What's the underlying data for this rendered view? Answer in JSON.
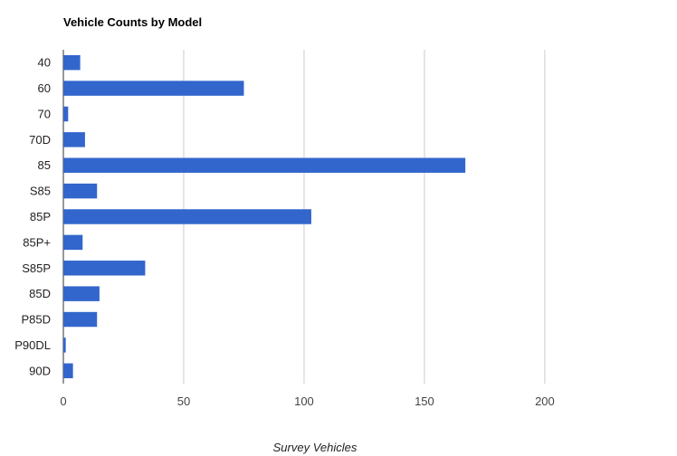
{
  "chart_data": {
    "type": "bar",
    "orientation": "horizontal",
    "title": "Vehicle Counts by Model",
    "xlabel": "Survey Vehicles",
    "ylabel": "",
    "categories": [
      "40",
      "60",
      "70",
      "70D",
      "85",
      "S85",
      "85P",
      "85P+",
      "S85P",
      "85D",
      "P85D",
      "P90DL",
      "90D"
    ],
    "values": [
      7,
      75,
      2,
      9,
      167,
      14,
      103,
      8,
      34,
      15,
      14,
      1,
      4
    ],
    "xlim": [
      0,
      235
    ],
    "xticks": [
      0,
      50,
      100,
      150,
      200
    ],
    "grid": true,
    "legend": "none",
    "bar_color": "#3366cc"
  }
}
